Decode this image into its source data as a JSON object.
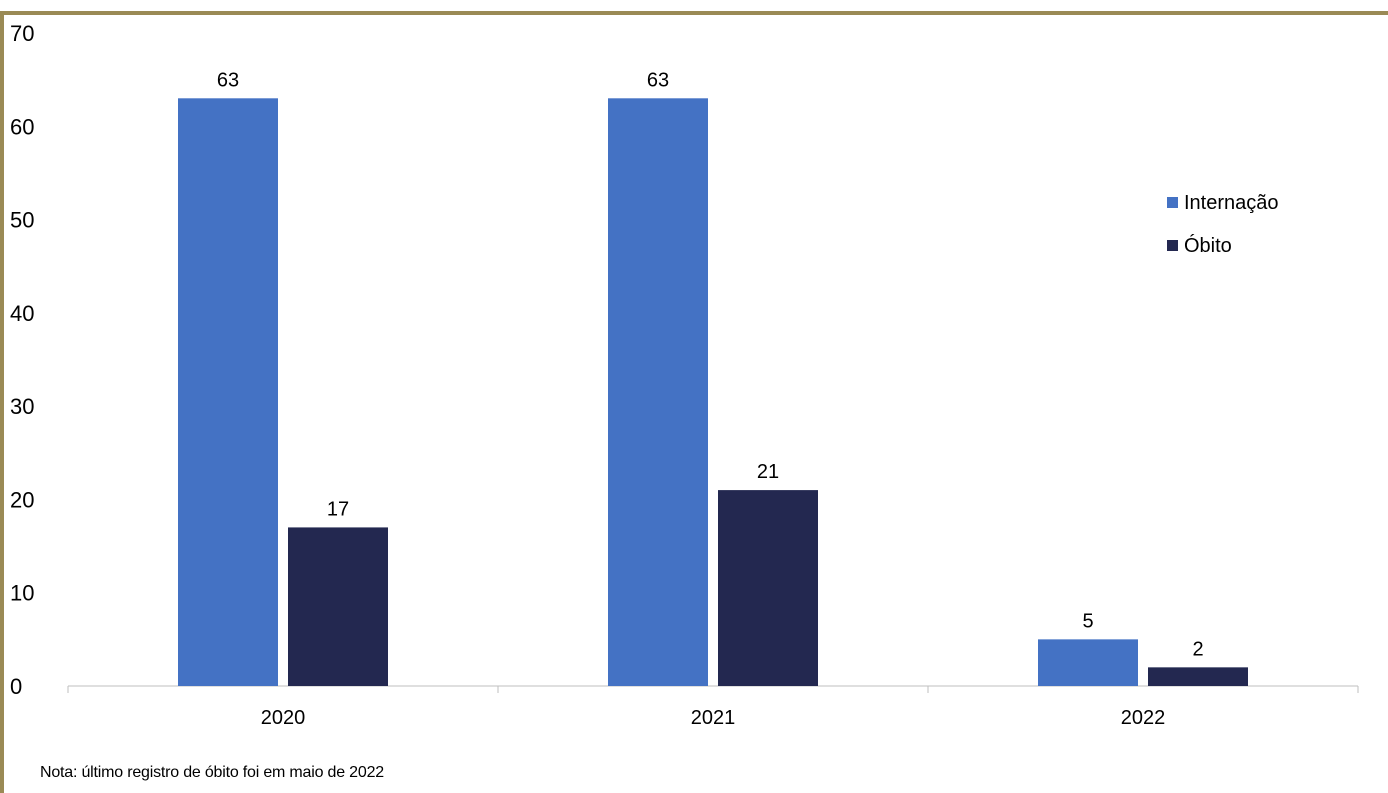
{
  "colors": {
    "frame": "#9a8a55",
    "internacao": "#4472c4",
    "obito": "#232850",
    "axis": "#bfbfbf",
    "text": "#000000"
  },
  "chart_data": {
    "type": "bar",
    "categories": [
      "2020",
      "2021",
      "2022"
    ],
    "series": [
      {
        "name": "Internação",
        "values": [
          63,
          63,
          5
        ],
        "color": "#4472c4"
      },
      {
        "name": "Óbito",
        "values": [
          17,
          21,
          2
        ],
        "color": "#232850"
      }
    ],
    "ylim": [
      0,
      70
    ],
    "yticks": [
      "0",
      "10",
      "20",
      "30",
      "40",
      "50",
      "60",
      "70"
    ],
    "data_labels": true,
    "legend_position": "right",
    "grid": false
  },
  "note": "Nota: último registro de óbito foi em maio de 2022"
}
